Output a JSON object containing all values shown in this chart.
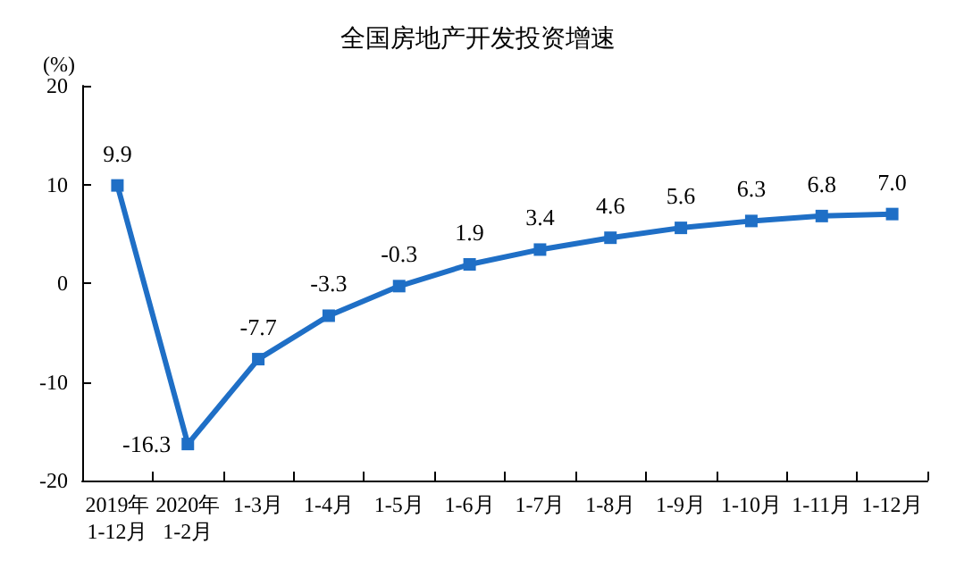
{
  "chart_data": {
    "type": "line",
    "title": "全国房地产开发投资增速",
    "ylabel": "(%)",
    "categories": [
      "2019年\n1-12月",
      "2020年\n1-2月",
      "1-3月",
      "1-4月",
      "1-5月",
      "1-6月",
      "1-7月",
      "1-8月",
      "1-9月",
      "1-10月",
      "1-11月",
      "1-12月"
    ],
    "series": [
      {
        "color": "#1f6fc6",
        "values": [
          9.9,
          -16.3,
          -7.7,
          -3.3,
          -0.3,
          1.9,
          3.4,
          4.6,
          5.6,
          6.3,
          6.8,
          7.0
        ],
        "value_labels": [
          "9.9",
          "-16.3",
          "-7.7",
          "-3.3",
          "-0.3",
          "1.9",
          "3.4",
          "4.6",
          "5.6",
          "6.3",
          "6.8",
          "7.0"
        ]
      }
    ],
    "ylim": [
      -20,
      20
    ],
    "yticks": [
      -20,
      -10,
      0,
      10,
      20
    ],
    "grid": false,
    "marker": "square",
    "line_style": "solid"
  }
}
